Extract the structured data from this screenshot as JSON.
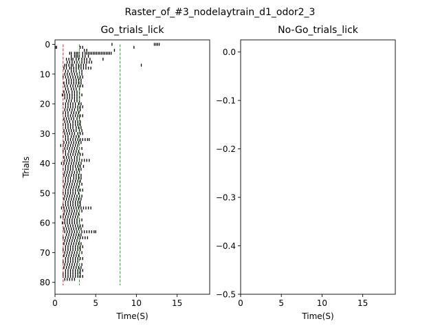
{
  "figure": {
    "suptitle": "Raster_of_#3_nodelaytrain_d1_odor2_3"
  },
  "chart_data": [
    {
      "type": "scatter",
      "marker": "vertical-tick",
      "title": "Go_trials_lick",
      "xlabel": "Time(S)",
      "ylabel": "Trials",
      "xlim": [
        0,
        19
      ],
      "ylim": [
        84,
        -1.5
      ],
      "y_inverted": true,
      "xticks": [
        0,
        5,
        10,
        15
      ],
      "yticks": [
        0,
        10,
        20,
        30,
        40,
        50,
        60,
        70,
        80
      ],
      "ytick_labels": [
        "0",
        "10",
        "20",
        "30",
        "40",
        "50",
        "60",
        "70",
        "80"
      ],
      "grid": false,
      "vlines": [
        {
          "x": 1,
          "ymin": 0,
          "ymax": 81,
          "color": "#d62728",
          "style": "dashed"
        },
        {
          "x": 3,
          "ymin": 0,
          "ymax": 81,
          "color": "#2ca02c",
          "style": "dashed"
        },
        {
          "x": 8,
          "ymin": 0,
          "ymax": 81,
          "color": "#2ca02c",
          "style": "dashed"
        }
      ],
      "trials": [
        {
          "trial": 0,
          "licks": [
            7.0,
            12.2,
            12.4,
            12.6,
            12.8
          ]
        },
        {
          "trial": 1,
          "licks": [
            0.05,
            0.2,
            3.1,
            3.4,
            9.7
          ]
        },
        {
          "trial": 2,
          "licks": [
            3.6,
            3.9,
            7.3
          ]
        },
        {
          "trial": 3,
          "licks": [
            1.8,
            2.0,
            2.4,
            2.6,
            2.8,
            3.0,
            3.4,
            3.7,
            3.9,
            4.1,
            4.3,
            4.5,
            4.7,
            4.9,
            5.1,
            5.3,
            5.5,
            5.7,
            5.9,
            6.1,
            6.3,
            6.5,
            6.7,
            6.9
          ]
        },
        {
          "trial": 4,
          "licks": [
            2.0,
            2.4,
            2.6,
            2.8,
            3.0,
            3.4,
            3.7,
            4.1
          ]
        },
        {
          "trial": 5,
          "licks": [
            1.4,
            1.7,
            2.0,
            2.2,
            2.6,
            2.9,
            3.3,
            3.6,
            3.9,
            4.3,
            5.9
          ]
        },
        {
          "trial": 6,
          "licks": [
            1.5,
            1.8,
            2.1,
            2.4,
            2.7,
            3.0,
            3.3,
            3.6,
            3.9,
            4.2,
            4.5
          ]
        },
        {
          "trial": 7,
          "licks": [
            1.2,
            1.4,
            1.7,
            2.0,
            2.2,
            2.6,
            2.9,
            3.2,
            3.5,
            3.8,
            10.6
          ]
        },
        {
          "trial": 8,
          "licks": [
            1.1,
            1.4,
            1.8,
            2.0,
            2.3,
            2.6,
            2.9,
            3.2,
            3.5,
            3.8,
            4.1,
            4.4
          ]
        },
        {
          "trial": 9,
          "licks": [
            1.3,
            1.6,
            2.0,
            2.3,
            2.6,
            3.0,
            3.3
          ]
        },
        {
          "trial": 10,
          "licks": [
            1.2,
            1.5,
            1.8,
            2.1,
            2.4,
            2.7,
            3.0,
            3.3
          ]
        },
        {
          "trial": 11,
          "licks": [
            1.0,
            1.3,
            1.6,
            1.9,
            2.2,
            2.5,
            2.8,
            3.1,
            3.4
          ]
        },
        {
          "trial": 12,
          "licks": [
            1.4,
            1.7,
            2.0,
            2.3,
            2.6,
            2.9,
            3.2
          ]
        },
        {
          "trial": 13,
          "licks": [
            1.1,
            1.4,
            1.7,
            2.0,
            2.3,
            2.6,
            2.9,
            3.2
          ]
        },
        {
          "trial": 14,
          "licks": [
            1.2,
            1.5,
            1.9,
            2.2,
            2.5,
            2.8,
            3.1,
            3.4
          ]
        },
        {
          "trial": 15,
          "licks": [
            1.3,
            1.6,
            2.0,
            2.3,
            2.6,
            3.0
          ]
        },
        {
          "trial": 16,
          "licks": [
            1.1,
            1.4,
            1.7,
            2.1,
            2.4,
            2.7,
            3.0
          ]
        },
        {
          "trial": 17,
          "licks": [
            0.9,
            1.2,
            1.5,
            1.8,
            2.1,
            2.4,
            2.7,
            3.0,
            3.3
          ]
        },
        {
          "trial": 18,
          "licks": [
            1.2,
            1.5,
            1.8,
            2.1,
            2.4,
            2.7,
            3.0
          ]
        },
        {
          "trial": 19,
          "licks": [
            1.4,
            1.7,
            2.0,
            2.4,
            2.7,
            3.0
          ]
        },
        {
          "trial": 20,
          "licks": [
            1.0,
            1.3,
            1.6,
            1.9,
            2.2,
            2.5,
            2.9,
            3.2
          ]
        },
        {
          "trial": 21,
          "licks": [
            1.3,
            1.6,
            1.9,
            2.2,
            2.5,
            2.8,
            3.1,
            3.4
          ]
        },
        {
          "trial": 22,
          "licks": [
            1.2,
            1.5,
            1.8,
            2.1,
            2.4,
            2.8,
            3.1
          ]
        },
        {
          "trial": 23,
          "licks": [
            1.0,
            1.3,
            1.6,
            2.0,
            2.3,
            2.6,
            2.9
          ]
        },
        {
          "trial": 24,
          "licks": [
            1.3,
            1.6,
            1.9,
            2.2,
            2.5,
            2.8,
            3.1,
            3.4
          ]
        },
        {
          "trial": 25,
          "licks": [
            1.1,
            1.4,
            1.7,
            2.0,
            2.3,
            2.7,
            3.0
          ]
        },
        {
          "trial": 26,
          "licks": [
            1.2,
            1.5,
            1.8,
            2.2,
            2.5,
            2.8,
            3.1
          ]
        },
        {
          "trial": 27,
          "licks": [
            1.0,
            1.3,
            1.6,
            1.9,
            2.2,
            2.5,
            2.8,
            3.1
          ]
        },
        {
          "trial": 28,
          "licks": [
            1.3,
            1.6,
            1.9,
            2.2,
            2.6,
            2.9,
            3.2
          ]
        },
        {
          "trial": 29,
          "licks": [
            1.1,
            1.4,
            1.7,
            2.0,
            2.3,
            2.6,
            3.0,
            3.3
          ]
        },
        {
          "trial": 30,
          "licks": [
            1.2,
            1.5,
            1.8,
            2.1,
            2.4,
            2.8,
            3.1,
            3.4
          ]
        },
        {
          "trial": 31,
          "licks": [
            1.0,
            1.3,
            1.6,
            2.0,
            2.3,
            2.6,
            2.9
          ]
        },
        {
          "trial": 32,
          "licks": [
            1.3,
            1.6,
            1.9,
            2.2,
            2.5,
            2.8,
            3.1,
            3.4,
            3.7,
            4.0,
            4.2
          ]
        },
        {
          "trial": 33,
          "licks": [
            1.1,
            1.4,
            1.7,
            2.0,
            2.3,
            2.6,
            2.9,
            3.2
          ]
        },
        {
          "trial": 34,
          "licks": [
            0.7,
            1.0,
            1.3,
            1.6,
            1.9,
            2.2,
            2.5,
            2.8
          ]
        },
        {
          "trial": 35,
          "licks": [
            1.2,
            1.5,
            1.8,
            2.1,
            2.4,
            2.7,
            3.0,
            3.3
          ]
        },
        {
          "trial": 36,
          "licks": [
            1.0,
            1.3,
            1.7,
            2.0,
            2.3,
            2.6,
            2.9
          ]
        },
        {
          "trial": 37,
          "licks": [
            1.3,
            1.6,
            1.9,
            2.2,
            2.5,
            2.8,
            3.1,
            3.4
          ]
        },
        {
          "trial": 38,
          "licks": [
            1.1,
            1.4,
            1.7,
            2.0,
            2.4,
            2.7,
            3.0
          ]
        },
        {
          "trial": 39,
          "licks": [
            1.2,
            1.5,
            1.8,
            2.1,
            2.4,
            2.7,
            3.0,
            3.3,
            3.6,
            3.9,
            4.2
          ]
        },
        {
          "trial": 40,
          "licks": [
            0.8,
            1.1,
            1.4,
            1.7,
            2.0,
            2.3,
            2.6,
            2.9,
            3.2
          ]
        },
        {
          "trial": 41,
          "licks": [
            1.3,
            1.6,
            1.9,
            2.2,
            2.5,
            2.8,
            3.1,
            3.5
          ]
        },
        {
          "trial": 42,
          "licks": [
            1.0,
            1.3,
            1.6,
            1.9,
            2.2,
            2.6,
            2.9,
            3.2
          ]
        },
        {
          "trial": 43,
          "licks": [
            1.2,
            1.5,
            1.8,
            2.1,
            2.4,
            2.7,
            3.0
          ]
        },
        {
          "trial": 44,
          "licks": [
            1.1,
            1.4,
            1.7,
            2.0,
            2.3,
            2.6,
            2.9,
            3.2
          ]
        },
        {
          "trial": 45,
          "licks": [
            1.3,
            1.6,
            1.9,
            2.3,
            2.6,
            2.9,
            3.2
          ]
        },
        {
          "trial": 46,
          "licks": [
            1.0,
            1.3,
            1.6,
            1.9,
            2.2,
            2.5,
            2.8,
            3.1
          ]
        },
        {
          "trial": 47,
          "licks": [
            1.2,
            1.5,
            1.8,
            2.1,
            2.4,
            2.7,
            3.0,
            3.3
          ]
        },
        {
          "trial": 48,
          "licks": [
            1.1,
            1.4,
            1.7,
            2.0,
            2.3,
            2.6,
            2.9
          ]
        },
        {
          "trial": 49,
          "licks": [
            1.3,
            1.6,
            1.9,
            2.2,
            2.5,
            2.8,
            3.1,
            3.4
          ]
        },
        {
          "trial": 50,
          "licks": [
            1.0,
            1.3,
            1.6,
            1.9,
            2.2,
            2.5,
            2.9
          ]
        },
        {
          "trial": 51,
          "licks": [
            1.2,
            1.5,
            1.8,
            2.1,
            2.4,
            2.7,
            3.0,
            3.3
          ]
        },
        {
          "trial": 52,
          "licks": [
            1.1,
            1.4,
            1.7,
            2.0,
            2.3,
            2.6,
            2.9,
            3.2
          ]
        },
        {
          "trial": 53,
          "licks": [
            1.3,
            1.6,
            1.9,
            2.2,
            2.5,
            2.8,
            3.1
          ]
        },
        {
          "trial": 54,
          "licks": [
            1.0,
            1.3,
            1.6,
            1.9,
            2.2,
            2.5,
            2.8,
            3.1
          ]
        },
        {
          "trial": 55,
          "licks": [
            0.8,
            1.1,
            1.4,
            1.7,
            2.0,
            2.3,
            2.6,
            2.9,
            3.2,
            3.5,
            3.8,
            4.1,
            4.4
          ]
        },
        {
          "trial": 56,
          "licks": [
            1.2,
            1.5,
            1.8,
            2.1,
            2.4,
            2.7,
            3.0,
            3.3
          ]
        },
        {
          "trial": 57,
          "licks": [
            1.1,
            1.4,
            1.7,
            2.0,
            2.3,
            2.6,
            2.9
          ]
        },
        {
          "trial": 58,
          "licks": [
            0.7,
            1.0,
            1.3,
            1.6,
            1.9,
            2.2,
            2.5,
            2.8
          ]
        },
        {
          "trial": 59,
          "licks": [
            1.2,
            1.5,
            1.8,
            2.1,
            2.4,
            2.7,
            3.0,
            3.3
          ]
        },
        {
          "trial": 60,
          "licks": [
            0.9,
            1.2,
            1.5,
            1.8,
            2.1,
            2.4,
            2.7,
            3.0
          ]
        },
        {
          "trial": 61,
          "licks": [
            1.3,
            1.6,
            1.9,
            2.2,
            2.5,
            2.8,
            3.1,
            3.4
          ]
        },
        {
          "trial": 62,
          "licks": [
            1.1,
            1.4,
            1.7,
            2.0,
            2.3,
            2.6,
            2.9,
            3.2
          ]
        },
        {
          "trial": 63,
          "licks": [
            1.2,
            1.5,
            1.8,
            2.1,
            2.4,
            2.7,
            3.0,
            3.3,
            3.6,
            3.9,
            4.2,
            4.5,
            4.8,
            5.0
          ]
        },
        {
          "trial": 64,
          "licks": [
            1.4,
            1.7,
            2.0,
            2.3,
            2.6,
            2.9,
            3.2
          ]
        },
        {
          "trial": 65,
          "licks": [
            1.0,
            1.3,
            1.6,
            1.9,
            2.2,
            2.5,
            2.8,
            3.1,
            3.4,
            3.7,
            4.0
          ]
        },
        {
          "trial": 66,
          "licks": [
            1.2,
            1.5,
            1.8,
            2.1,
            2.4,
            2.7,
            3.0
          ]
        },
        {
          "trial": 67,
          "licks": [
            1.1,
            1.4,
            1.7,
            2.0,
            2.3,
            2.6,
            2.9,
            3.2
          ]
        },
        {
          "trial": 68,
          "licks": [
            1.3,
            1.6,
            1.9,
            2.2,
            2.5,
            2.8,
            3.1,
            3.4
          ]
        },
        {
          "trial": 69,
          "licks": [
            1.0,
            1.3,
            1.6,
            1.9,
            2.2,
            2.5,
            2.8,
            3.1
          ]
        },
        {
          "trial": 70,
          "licks": [
            1.2,
            1.5,
            1.8,
            2.1,
            2.4,
            2.7,
            3.0,
            3.3
          ]
        },
        {
          "trial": 71,
          "licks": [
            1.1,
            1.4,
            1.7,
            2.0,
            2.3,
            2.6,
            2.9
          ]
        },
        {
          "trial": 72,
          "licks": [
            1.3,
            1.6,
            1.9,
            2.2,
            2.5,
            2.8,
            3.1,
            3.4
          ]
        },
        {
          "trial": 73,
          "licks": [
            1.0,
            1.3,
            1.6,
            1.9,
            2.2,
            2.5,
            2.8
          ]
        },
        {
          "trial": 74,
          "licks": [
            1.2,
            1.5,
            1.8,
            2.1,
            2.4,
            2.7,
            3.0,
            3.3
          ]
        },
        {
          "trial": 75,
          "licks": [
            1.1,
            1.4,
            1.7,
            2.0,
            2.3,
            2.6,
            2.9,
            3.2
          ]
        },
        {
          "trial": 76,
          "licks": [
            1.3,
            1.6,
            1.9,
            2.2,
            2.5,
            2.8,
            3.1,
            3.4
          ]
        },
        {
          "trial": 77,
          "licks": [
            1.0,
            1.3,
            1.6,
            1.9,
            2.2,
            2.5,
            2.8,
            3.1
          ]
        },
        {
          "trial": 78,
          "licks": [
            1.0,
            1.3,
            1.6,
            1.9,
            2.2,
            2.5,
            2.8,
            3.1,
            3.4
          ]
        },
        {
          "trial": 79,
          "licks": [
            1.2,
            1.5,
            1.8,
            2.1,
            2.4
          ]
        }
      ]
    },
    {
      "type": "scatter",
      "marker": "vertical-tick",
      "title": "No-Go_trials_lick",
      "xlabel": "Time(S)",
      "ylabel": "",
      "xlim": [
        0,
        19
      ],
      "ylim": [
        -0.5,
        0.025
      ],
      "y_inverted": false,
      "xticks": [
        0,
        5,
        10,
        15
      ],
      "yticks": [
        0.0,
        -0.1,
        -0.2,
        -0.3,
        -0.4,
        -0.5
      ],
      "ytick_labels": [
        "0.0",
        "−0.1",
        "−0.2",
        "−0.3",
        "−0.4",
        "−0.5"
      ],
      "grid": false,
      "vlines": [],
      "trials": []
    }
  ]
}
